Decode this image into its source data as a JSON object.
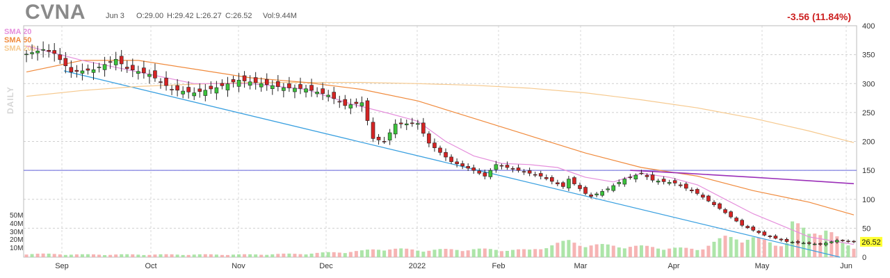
{
  "header": {
    "ticker": "CVNA",
    "date": "Jun 3",
    "open": "O:29.00",
    "high": "H:29.42",
    "low": "L:26.27",
    "close": "C:26.52",
    "volume": "Vol:9.44M",
    "change": "-3.56 (11.84%)"
  },
  "period_label": "DAILY",
  "legend": [
    {
      "name": "SMA 20",
      "color": "#e58fdc"
    },
    {
      "name": "SMA 50",
      "color": "#f08a3c"
    },
    {
      "name": "SMA 200",
      "color": "#f6c98e"
    }
  ],
  "last_price_label": "26.52",
  "volume_axis_labels": [
    "50M",
    "40M",
    "30M",
    "20M",
    "10M"
  ],
  "chart_data": {
    "type": "candlestick",
    "title": "CVNA",
    "ylim": [
      0,
      400
    ],
    "y_ticks": [
      0,
      50,
      100,
      150,
      200,
      250,
      300,
      350,
      400
    ],
    "x_labels": [
      "Sep",
      "Oct",
      "Nov",
      "Dec",
      "2022",
      "Feb",
      "Mar",
      "Apr",
      "May",
      "Jun"
    ],
    "grid": true,
    "legend_position": "top-left",
    "horizontal_line": 150,
    "trendline": {
      "from": [
        "Sep",
        322
      ],
      "to": [
        "Jun",
        0
      ]
    },
    "close_waypoints": [
      [
        0,
        351
      ],
      [
        3,
        359
      ],
      [
        5,
        352
      ],
      [
        8,
        320
      ],
      [
        12,
        324
      ],
      [
        14,
        333
      ],
      [
        16,
        342
      ],
      [
        18,
        326
      ],
      [
        22,
        316
      ],
      [
        26,
        290
      ],
      [
        30,
        284
      ],
      [
        34,
        293
      ],
      [
        38,
        306
      ],
      [
        42,
        300
      ],
      [
        46,
        293
      ],
      [
        50,
        291
      ],
      [
        54,
        280
      ],
      [
        57,
        262
      ],
      [
        60,
        267
      ],
      [
        62,
        205
      ],
      [
        64,
        200
      ],
      [
        66,
        230
      ],
      [
        70,
        231
      ],
      [
        72,
        197
      ],
      [
        76,
        165
      ],
      [
        80,
        150
      ],
      [
        82,
        140
      ],
      [
        84,
        160
      ],
      [
        88,
        150
      ],
      [
        92,
        140
      ],
      [
        96,
        122
      ],
      [
        97,
        135
      ],
      [
        100,
        110
      ],
      [
        101,
        105
      ],
      [
        104,
        118
      ],
      [
        107,
        135
      ],
      [
        110,
        145
      ],
      [
        112,
        133
      ],
      [
        116,
        128
      ],
      [
        120,
        110
      ],
      [
        124,
        84
      ],
      [
        128,
        55
      ],
      [
        132,
        38
      ],
      [
        136,
        27
      ],
      [
        138,
        25
      ],
      [
        142,
        22
      ],
      [
        145,
        29
      ],
      [
        148,
        26.52
      ]
    ],
    "sma_20": [
      [
        0,
        365
      ],
      [
        10,
        340
      ],
      [
        20,
        320
      ],
      [
        30,
        300
      ],
      [
        40,
        300
      ],
      [
        50,
        290
      ],
      [
        58,
        265
      ],
      [
        65,
        248
      ],
      [
        70,
        235
      ],
      [
        75,
        200
      ],
      [
        80,
        175
      ],
      [
        85,
        162
      ],
      [
        90,
        160
      ],
      [
        95,
        155
      ],
      [
        100,
        138
      ],
      [
        105,
        130
      ],
      [
        110,
        145
      ],
      [
        115,
        138
      ],
      [
        120,
        125
      ],
      [
        125,
        100
      ],
      [
        130,
        75
      ],
      [
        135,
        55
      ],
      [
        140,
        35
      ],
      [
        148,
        22
      ]
    ],
    "sma_50": [
      [
        0,
        320
      ],
      [
        10,
        340
      ],
      [
        20,
        340
      ],
      [
        30,
        325
      ],
      [
        40,
        310
      ],
      [
        50,
        302
      ],
      [
        60,
        290
      ],
      [
        70,
        270
      ],
      [
        80,
        240
      ],
      [
        90,
        210
      ],
      [
        100,
        180
      ],
      [
        110,
        155
      ],
      [
        120,
        140
      ],
      [
        130,
        115
      ],
      [
        140,
        95
      ],
      [
        148,
        73
      ]
    ],
    "sma_200": [
      [
        0,
        278
      ],
      [
        10,
        288
      ],
      [
        20,
        295
      ],
      [
        30,
        299
      ],
      [
        40,
        302
      ],
      [
        50,
        302
      ],
      [
        60,
        302
      ],
      [
        70,
        300
      ],
      [
        80,
        297
      ],
      [
        90,
        292
      ],
      [
        100,
        284
      ],
      [
        110,
        272
      ],
      [
        120,
        258
      ],
      [
        130,
        240
      ],
      [
        140,
        218
      ],
      [
        148,
        198
      ]
    ],
    "sma_long_purple": [
      [
        108,
        150
      ],
      [
        118,
        145
      ],
      [
        130,
        138
      ],
      [
        140,
        132
      ],
      [
        148,
        127
      ]
    ],
    "volume_m": [
      [
        0,
        4
      ],
      [
        10,
        3
      ],
      [
        20,
        3
      ],
      [
        30,
        3
      ],
      [
        40,
        3
      ],
      [
        50,
        4
      ],
      [
        60,
        7
      ],
      [
        64,
        10
      ],
      [
        70,
        8
      ],
      [
        80,
        9
      ],
      [
        90,
        8
      ],
      [
        97,
        18
      ],
      [
        100,
        14
      ],
      [
        110,
        12
      ],
      [
        120,
        9
      ],
      [
        125,
        22
      ],
      [
        130,
        22
      ],
      [
        134,
        14
      ],
      [
        136,
        18
      ],
      [
        137,
        40
      ],
      [
        140,
        25
      ],
      [
        143,
        35
      ],
      [
        146,
        15
      ],
      [
        148,
        10
      ]
    ]
  }
}
